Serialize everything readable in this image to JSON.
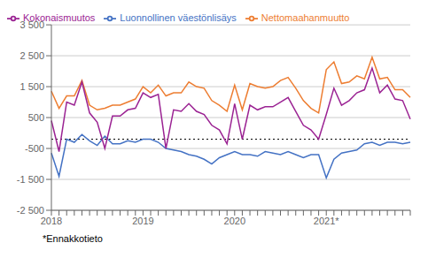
{
  "chart_data": {
    "type": "line",
    "categories": [
      "2018",
      null,
      null,
      null,
      null,
      null,
      null,
      null,
      null,
      null,
      null,
      null,
      "2019",
      null,
      null,
      null,
      null,
      null,
      null,
      null,
      null,
      null,
      null,
      null,
      "2020",
      null,
      null,
      null,
      null,
      null,
      null,
      null,
      null,
      null,
      null,
      null,
      "2021*",
      null,
      null,
      null,
      null,
      null,
      null,
      null,
      null,
      null,
      null,
      null
    ],
    "series": [
      {
        "name": "Luonnollinen väestönlisäys",
        "color": "#4472c4",
        "values": [
          -650,
          -1400,
          -200,
          -300,
          -50,
          -250,
          -400,
          -100,
          -350,
          -350,
          -250,
          -300,
          -200,
          -200,
          -300,
          -500,
          -550,
          -600,
          -700,
          -750,
          -850,
          -1000,
          -800,
          -700,
          -600,
          -700,
          -700,
          -750,
          -600,
          -650,
          -700,
          -600,
          -700,
          -800,
          -700,
          -700,
          -1450,
          -850,
          -650,
          -600,
          -550,
          -350,
          -300,
          -400,
          -300,
          -300,
          -350,
          -300
        ]
      },
      {
        "name": "Nettomaahanmuutto",
        "color": "#ed7d31",
        "values": [
          1350,
          800,
          1200,
          1200,
          1700,
          900,
          750,
          800,
          900,
          900,
          1000,
          1100,
          1500,
          1300,
          1550,
          1200,
          1300,
          1300,
          1650,
          1500,
          1450,
          1050,
          900,
          700,
          1550,
          750,
          1600,
          1500,
          1450,
          1500,
          1700,
          1800,
          1450,
          1050,
          800,
          650,
          2050,
          2300,
          1600,
          1650,
          1850,
          1750,
          2450,
          1750,
          1800,
          1400,
          1400,
          1150
        ]
      },
      {
        "name": "Kokonaismuutos",
        "color": "#9b2393",
        "values": [
          400,
          -600,
          1000,
          900,
          1650,
          650,
          350,
          -500,
          550,
          550,
          750,
          800,
          1300,
          1150,
          1250,
          -500,
          750,
          700,
          950,
          700,
          600,
          250,
          100,
          -350,
          950,
          -200,
          900,
          750,
          850,
          850,
          1000,
          1150,
          700,
          250,
          100,
          -200,
          600,
          1450,
          900,
          1050,
          1300,
          1400,
          2100,
          1300,
          1550,
          1100,
          1050,
          450
        ]
      }
    ],
    "ylim": [
      -2500,
      3500
    ],
    "yticks": [
      {
        "value": -2500,
        "label": "-2 500"
      },
      {
        "value": -1500,
        "label": "-1 500"
      },
      -500,
      500,
      {
        "value": 1500,
        "label": "1 500"
      },
      {
        "value": 2500,
        "label": "2 500"
      },
      {
        "value": 3500,
        "label": "3 500"
      }
    ],
    "reference_lines": [
      {
        "y": -200,
        "color": "#000000",
        "line_style": "dotted"
      }
    ],
    "grid": true,
    "legend": "upper left",
    "footnote": "*Ennakkotieto"
  }
}
